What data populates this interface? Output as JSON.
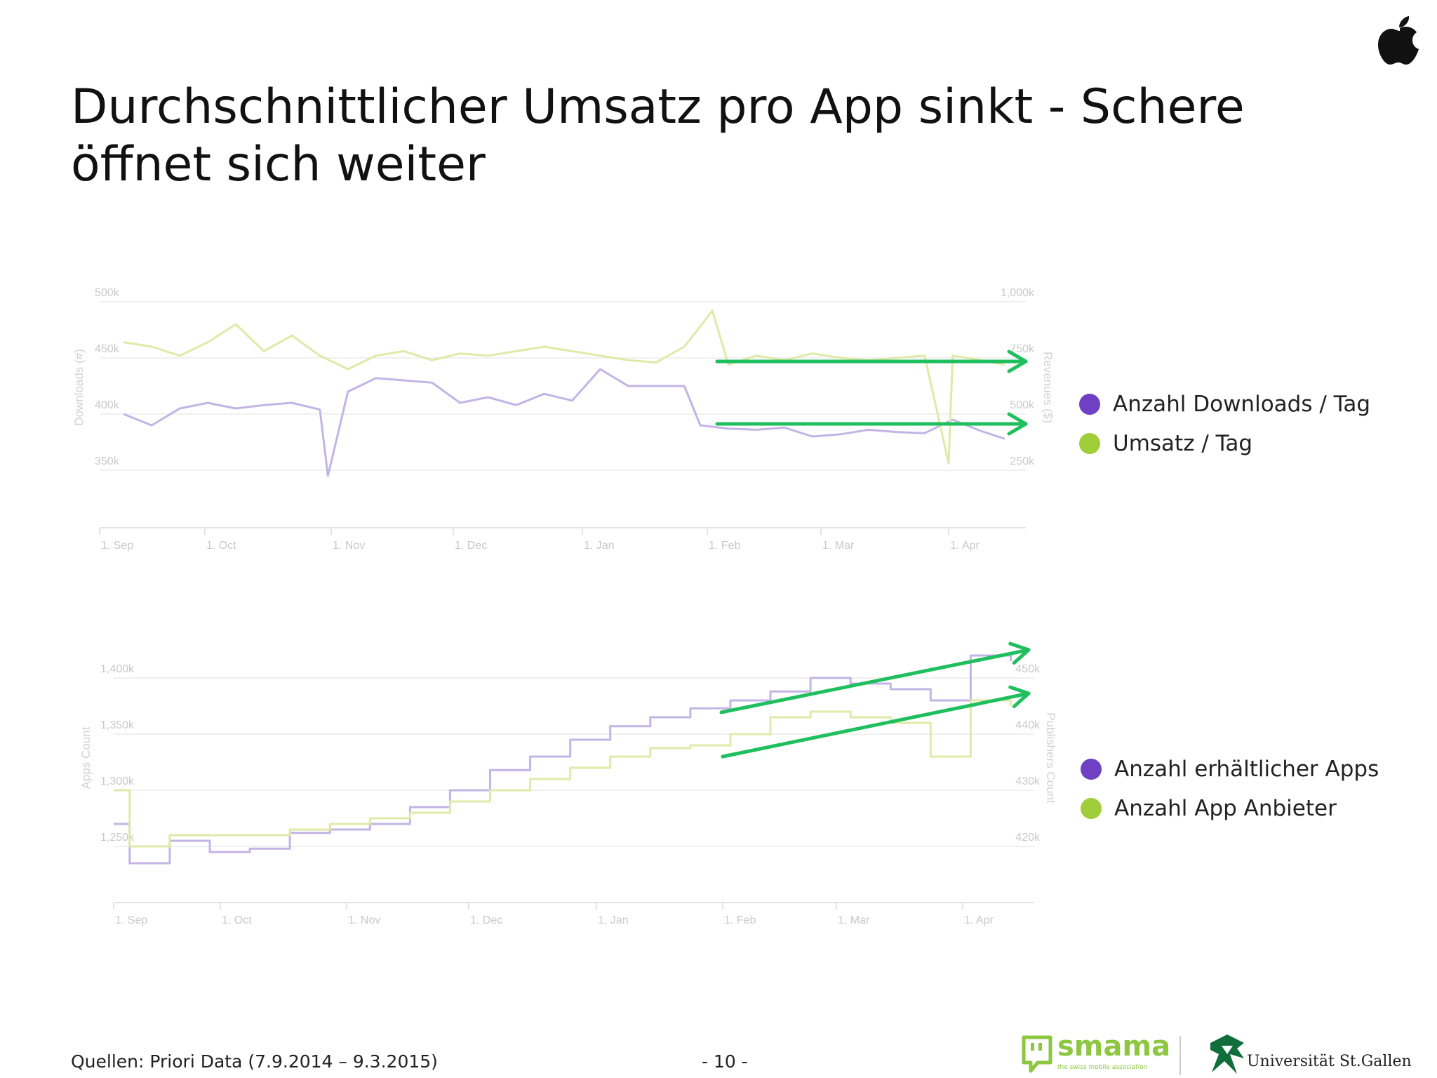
{
  "slide": {
    "title": "Durchschnittlicher Umsatz pro App sinkt - Schere öffnet sich weiter",
    "source": "Quellen: Priori Data (7.9.2014 – 9.3.2015)",
    "page_number": "- 10 -",
    "logo_smama": "smama",
    "logo_smama_tagline": "the swiss mobile association",
    "logo_unisg": "Universität St.Gallen",
    "icon_top_right": "apple-logo-icon"
  },
  "colors": {
    "purple": "#6f3fc4",
    "green": "#9fce3a",
    "purple_line": "#c3b4e6",
    "green_line": "#dfeaa8",
    "arrow": "#1fbf5e"
  },
  "chart_data": [
    {
      "type": "line",
      "x_tick_labels": [
        "1. Sep",
        "1. Oct",
        "1. Nov",
        "1. Dec",
        "1. Jan",
        "1. Feb",
        "1. Mar",
        "1. Apr"
      ],
      "ylabel_left": "Downloads (#)",
      "ylabel_right": "Revenues ($)",
      "y_left_ticks": [
        "500k",
        "450k",
        "400k",
        "350k"
      ],
      "y_right_ticks": [
        "1,000k",
        "750k",
        "500k",
        "250k"
      ],
      "ylim_left": [
        350000,
        500000
      ],
      "ylim_right": [
        250000,
        1000000
      ],
      "legend": [
        "Anzahl Downloads / Tag",
        "Umsatz / Tag"
      ],
      "legend_position": "right",
      "series": [
        {
          "name": "Anzahl Downloads / Tag",
          "axis": "left",
          "x": [
            "2014-09-07",
            "2014-09-14",
            "2014-09-21",
            "2014-09-28",
            "2014-10-05",
            "2014-10-12",
            "2014-10-19",
            "2014-10-26",
            "2014-10-28",
            "2014-11-02",
            "2014-11-09",
            "2014-11-16",
            "2014-11-23",
            "2014-11-30",
            "2014-12-07",
            "2014-12-14",
            "2014-12-21",
            "2014-12-28",
            "2015-01-04",
            "2015-01-11",
            "2015-01-18",
            "2015-01-25",
            "2015-01-29",
            "2015-02-05",
            "2015-02-12",
            "2015-02-19",
            "2015-02-26",
            "2015-03-05",
            "2015-03-12",
            "2015-03-19",
            "2015-03-26",
            "2015-04-02",
            "2015-04-09",
            "2015-04-15"
          ],
          "values": [
            400000,
            390000,
            405000,
            410000,
            405000,
            408000,
            410000,
            404000,
            345000,
            420000,
            432000,
            430000,
            428000,
            410000,
            415000,
            408000,
            418000,
            412000,
            440000,
            425000,
            425000,
            425000,
            390000,
            387000,
            386000,
            388000,
            380000,
            382000,
            386000,
            384000,
            383000,
            395000,
            385000,
            378000
          ]
        },
        {
          "name": "Umsatz / Tag",
          "axis": "right",
          "x": [
            "2014-09-07",
            "2014-09-14",
            "2014-09-21",
            "2014-09-28",
            "2014-10-05",
            "2014-10-12",
            "2014-10-19",
            "2014-10-26",
            "2014-11-02",
            "2014-11-09",
            "2014-11-16",
            "2014-11-23",
            "2014-11-30",
            "2014-12-07",
            "2014-12-14",
            "2014-12-21",
            "2014-12-28",
            "2015-01-04",
            "2015-01-11",
            "2015-01-18",
            "2015-01-25",
            "2015-02-01",
            "2015-02-05",
            "2015-02-12",
            "2015-02-19",
            "2015-02-26",
            "2015-03-05",
            "2015-03-12",
            "2015-03-19",
            "2015-03-26",
            "2015-04-01",
            "2015-04-02",
            "2015-04-09",
            "2015-04-15"
          ],
          "values": [
            820000,
            800000,
            760000,
            820000,
            900000,
            780000,
            850000,
            760000,
            700000,
            760000,
            780000,
            740000,
            770000,
            760000,
            780000,
            800000,
            780000,
            760000,
            740000,
            730000,
            800000,
            960000,
            720000,
            760000,
            740000,
            770000,
            750000,
            740000,
            750000,
            760000,
            280000,
            760000,
            740000,
            720000
          ]
        }
      ],
      "annotations": [
        "trend arrow on Umsatz / Tag (flat)",
        "trend arrow on Anzahl Downloads / Tag (flat)"
      ]
    },
    {
      "type": "line",
      "x_tick_labels": [
        "1. Sep",
        "1. Oct",
        "1. Nov",
        "1. Dec",
        "1. Jan",
        "1. Feb",
        "1. Mar",
        "1. Apr"
      ],
      "ylabel_left": "Apps Count",
      "ylabel_right": "Publishers Count",
      "y_left_ticks": [
        "1,400k",
        "1,350k",
        "1,300k",
        "1,250k"
      ],
      "y_right_ticks": [
        "450k",
        "440k",
        "430k",
        "420k"
      ],
      "ylim_left": [
        1250000,
        1400000
      ],
      "ylim_right": [
        420000,
        450000
      ],
      "legend": [
        "Anzahl erhältlicher Apps",
        "Anzahl App Anbieter"
      ],
      "legend_position": "right",
      "series": [
        {
          "name": "Anzahl erhältlicher Apps",
          "axis": "left",
          "x": [
            "2014-09-01",
            "2014-09-05",
            "2014-09-15",
            "2014-09-25",
            "2014-10-05",
            "2014-10-15",
            "2014-10-25",
            "2014-11-04",
            "2014-11-14",
            "2014-11-24",
            "2014-12-04",
            "2014-12-14",
            "2014-12-24",
            "2015-01-03",
            "2015-01-13",
            "2015-01-23",
            "2015-02-02",
            "2015-02-12",
            "2015-02-22",
            "2015-03-04",
            "2015-03-14",
            "2015-03-24",
            "2015-04-03",
            "2015-04-13"
          ],
          "values": [
            1270000,
            1235000,
            1255000,
            1245000,
            1248000,
            1262000,
            1265000,
            1270000,
            1285000,
            1300000,
            1318000,
            1330000,
            1345000,
            1357000,
            1365000,
            1373000,
            1380000,
            1388000,
            1400000,
            1395000,
            1390000,
            1380000,
            1420000,
            1415000
          ]
        },
        {
          "name": "Anzahl App Anbieter",
          "axis": "right",
          "x": [
            "2014-09-01",
            "2014-09-05",
            "2014-09-15",
            "2014-09-25",
            "2014-10-05",
            "2014-10-15",
            "2014-10-25",
            "2014-11-04",
            "2014-11-14",
            "2014-11-24",
            "2014-12-04",
            "2014-12-14",
            "2014-12-24",
            "2015-01-03",
            "2015-01-13",
            "2015-01-23",
            "2015-02-02",
            "2015-02-12",
            "2015-02-22",
            "2015-03-04",
            "2015-03-14",
            "2015-03-24",
            "2015-04-03",
            "2015-04-13"
          ],
          "values": [
            430000,
            420000,
            422000,
            422000,
            422000,
            423000,
            424000,
            425000,
            426000,
            428000,
            430000,
            432000,
            434000,
            436000,
            437500,
            438000,
            440000,
            443000,
            444000,
            443000,
            442000,
            436000,
            446000,
            445000
          ]
        }
      ],
      "annotations": [
        "trend arrow on Anzahl erhältlicher Apps (rising)",
        "trend arrow on Anzahl App Anbieter (rising)"
      ]
    }
  ]
}
